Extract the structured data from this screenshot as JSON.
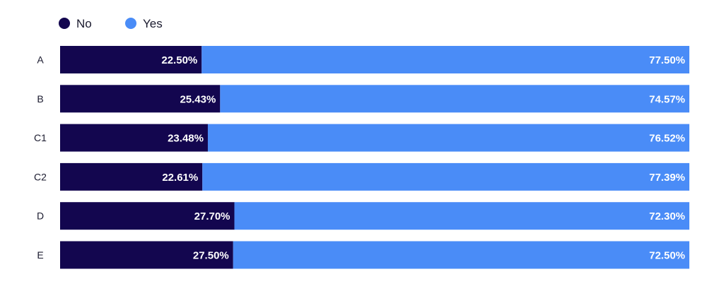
{
  "chart_data": {
    "type": "bar",
    "orientation": "horizontal",
    "stacked": true,
    "normalized_percent": true,
    "categories": [
      "A",
      "B",
      "C1",
      "C2",
      "D",
      "E"
    ],
    "series": [
      {
        "name": "No",
        "color": "#13064f",
        "values": [
          22.5,
          25.43,
          23.48,
          22.61,
          27.7,
          27.5
        ],
        "labels": [
          "22.50%",
          "25.43%",
          "23.48%",
          "22.61%",
          "27.70%",
          "27.50%"
        ]
      },
      {
        "name": "Yes",
        "color": "#4a8cf7",
        "values": [
          77.5,
          74.57,
          76.52,
          77.39,
          72.3,
          72.5
        ],
        "labels": [
          "77.50%",
          "74.57%",
          "76.52%",
          "77.39%",
          "72.30%",
          "72.50%"
        ]
      }
    ],
    "xlim": [
      0,
      100
    ],
    "grid": false,
    "legend_position": "top-left"
  }
}
